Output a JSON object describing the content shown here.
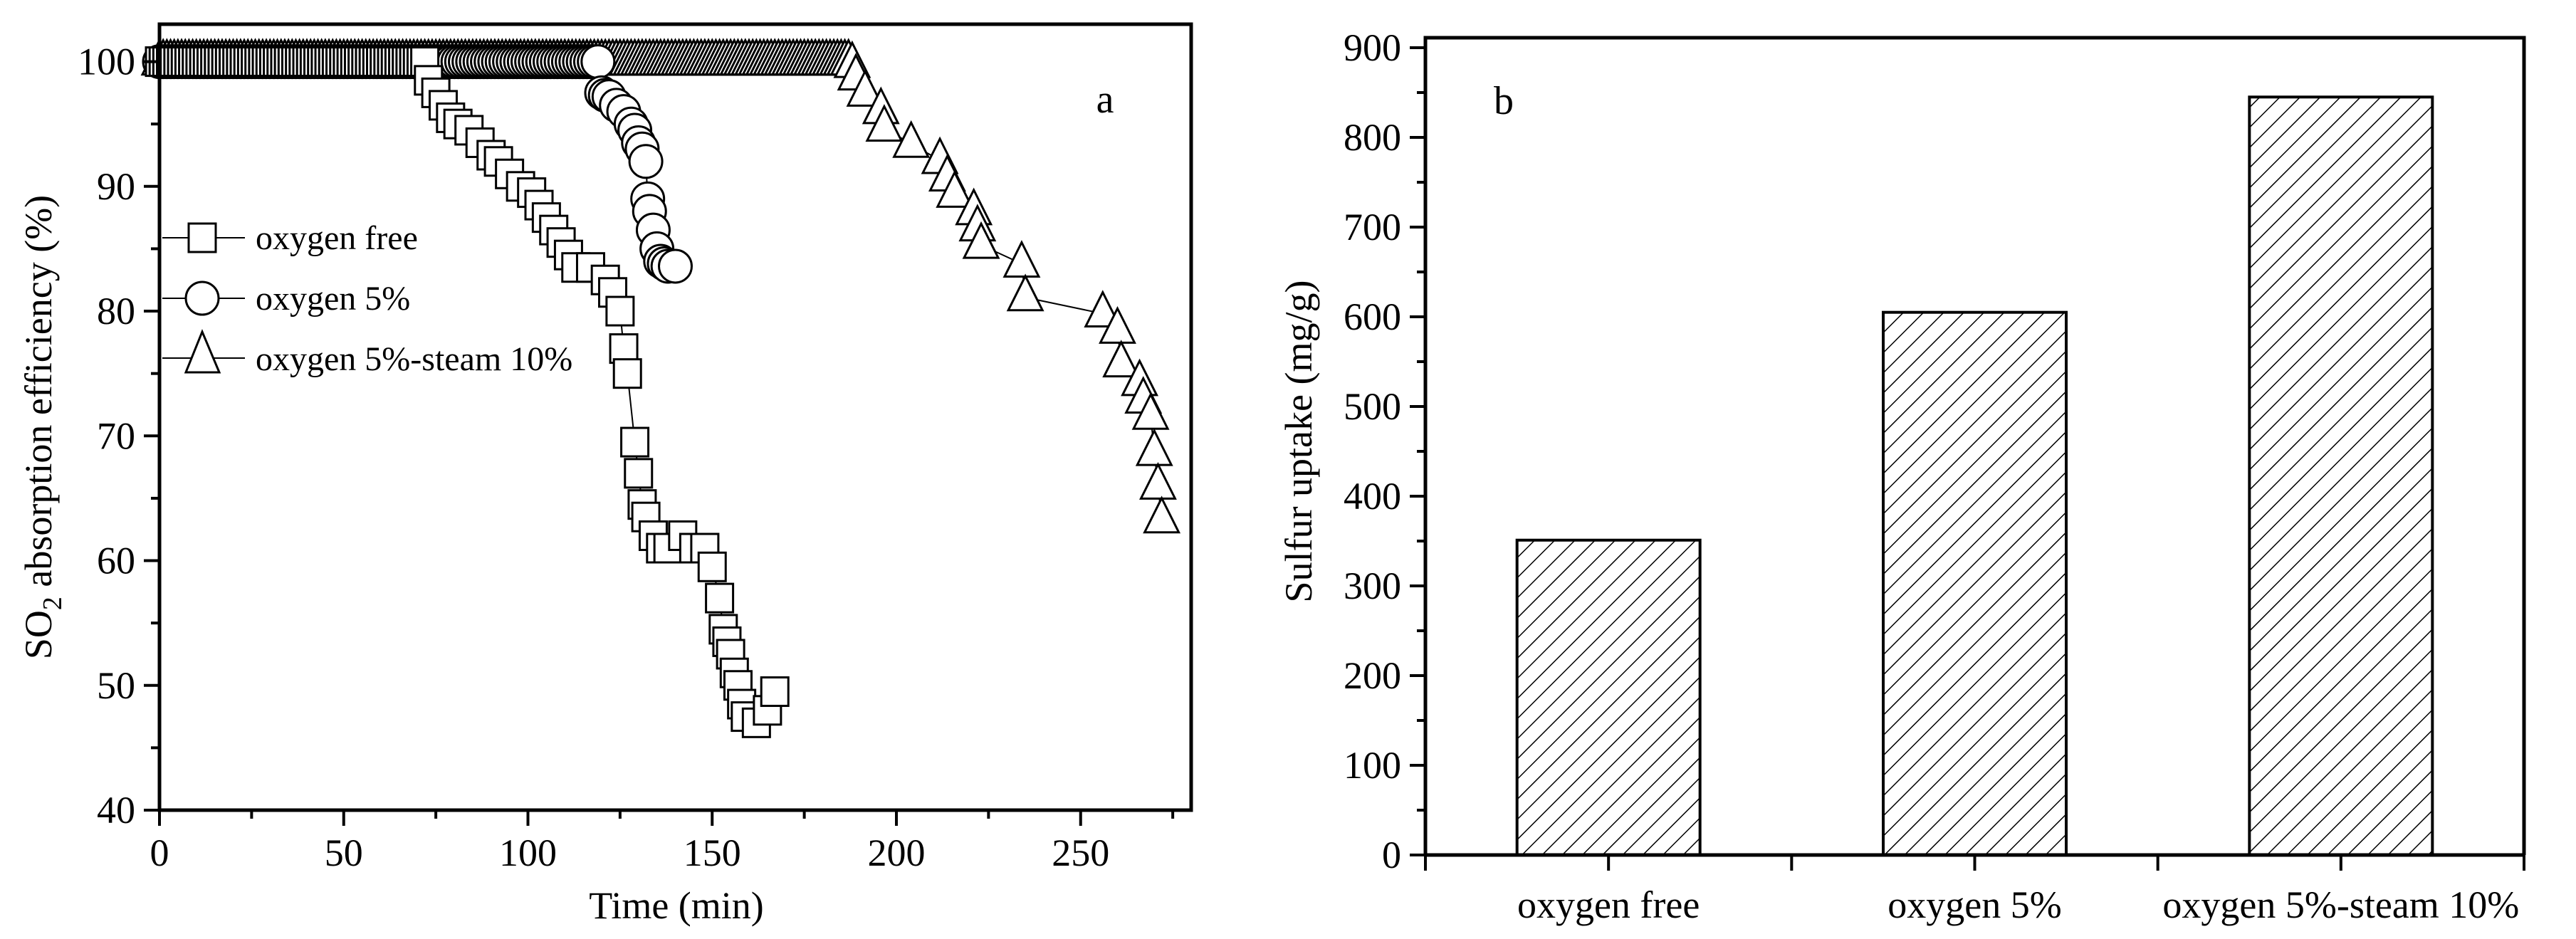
{
  "figure": {
    "panels": [
      "a",
      "b"
    ]
  },
  "panel_a": {
    "letter": "a",
    "xlabel": "Time (min)",
    "ylabel_prefix": "SO",
    "ylabel_sub": "2",
    "ylabel_suffix": " absorption efficiency (%)",
    "xticks": [
      "0",
      "50",
      "100",
      "150",
      "200",
      "250"
    ],
    "yticks": [
      "40",
      "50",
      "60",
      "70",
      "80",
      "90",
      "100"
    ],
    "legend": [
      {
        "label": "oxygen free",
        "marker": "square-icon"
      },
      {
        "label": "oxygen 5%",
        "marker": "circle-icon"
      },
      {
        "label": "oxygen 5%-steam 10%",
        "marker": "triangle-icon"
      }
    ]
  },
  "panel_b": {
    "letter": "b",
    "ylabel": "Sulfur uptake (mg/g)",
    "yticks": [
      "0",
      "100",
      "200",
      "300",
      "400",
      "500",
      "600",
      "700",
      "800",
      "900"
    ],
    "categories": [
      "oxygen free",
      "oxygen 5%",
      "oxygen 5%-steam 10%"
    ]
  },
  "chart_data": [
    {
      "type": "scatter",
      "title": "a",
      "xlabel": "Time (min)",
      "ylabel": "SO2 absorption efficiency (%)",
      "xlim": [
        0,
        280
      ],
      "ylim": [
        40,
        103
      ],
      "xticks": [
        0,
        50,
        100,
        150,
        200,
        250
      ],
      "yticks": [
        40,
        50,
        60,
        70,
        80,
        90,
        100
      ],
      "grid": false,
      "legend_position": "upper left",
      "series": [
        {
          "name": "oxygen free",
          "marker": "square",
          "plateau": {
            "from": 0,
            "to": 72,
            "value": 100,
            "step": 1
          },
          "points": [
            [
              73,
              98.5
            ],
            [
              75,
              97.5
            ],
            [
              77,
              96.5
            ],
            [
              79,
              95.5
            ],
            [
              81,
              95
            ],
            [
              84,
              94.5
            ],
            [
              87,
              93.5
            ],
            [
              90,
              92.5
            ],
            [
              92,
              92
            ],
            [
              95,
              91
            ],
            [
              98,
              90
            ],
            [
              101,
              89.5
            ],
            [
              103,
              88.5
            ],
            [
              105,
              87.5
            ],
            [
              107,
              86.5
            ],
            [
              109,
              85.5
            ],
            [
              111,
              84.5
            ],
            [
              113,
              83.5
            ],
            [
              117,
              83.5
            ],
            [
              121,
              82.5
            ],
            [
              123,
              81.5
            ],
            [
              125,
              80
            ],
            [
              126,
              77
            ],
            [
              127,
              75
            ],
            [
              129,
              69.5
            ],
            [
              130,
              67
            ],
            [
              131,
              64.5
            ],
            [
              132,
              63.5
            ],
            [
              134,
              62
            ],
            [
              136,
              61
            ],
            [
              138,
              61
            ],
            [
              142,
              62
            ],
            [
              145,
              61
            ],
            [
              148,
              61
            ],
            [
              150,
              59.5
            ],
            [
              152,
              57
            ],
            [
              153,
              54.5
            ],
            [
              154,
              53.5
            ],
            [
              155,
              52.5
            ],
            [
              156,
              51
            ],
            [
              157,
              50
            ],
            [
              158,
              48.5
            ],
            [
              159,
              47.5
            ],
            [
              162,
              47
            ],
            [
              165,
              48
            ],
            [
              167,
              49.5
            ]
          ]
        },
        {
          "name": "oxygen 5%",
          "marker": "circle",
          "plateau": {
            "from": 0,
            "to": 119,
            "value": 100,
            "step": 1
          },
          "points": [
            [
              120,
              97.5
            ],
            [
              121,
              97.3
            ],
            [
              122,
              97.2
            ],
            [
              124,
              96.5
            ],
            [
              126,
              96
            ],
            [
              128,
              95
            ],
            [
              129,
              94.5
            ],
            [
              130,
              93.5
            ],
            [
              131,
              93
            ],
            [
              132,
              92
            ],
            [
              132.5,
              89
            ],
            [
              133,
              88
            ],
            [
              134,
              86.5
            ],
            [
              135,
              85
            ],
            [
              136,
              84
            ],
            [
              137,
              83.8
            ],
            [
              138,
              83.6
            ],
            [
              140,
              83.6
            ]
          ]
        },
        {
          "name": "oxygen 5%-steam 10%",
          "marker": "triangle",
          "plateau": {
            "from": 0,
            "to": 187,
            "value": 100,
            "step": 1
          },
          "points": [
            [
              188,
              99.8
            ],
            [
              189,
              98.8
            ],
            [
              191.5,
              97.5
            ],
            [
              195.8,
              96.1
            ],
            [
              196.7,
              94.7
            ],
            [
              204,
              93.4
            ],
            [
              211.8,
              92.1
            ],
            [
              213.8,
              90.7
            ],
            [
              215.8,
              89.4
            ],
            [
              221,
              88
            ],
            [
              222,
              86.7
            ],
            [
              223,
              85.3
            ],
            [
              234,
              83.8
            ],
            [
              235,
              81.1
            ],
            [
              256,
              79.8
            ],
            [
              260,
              78.5
            ],
            [
              261,
              75.8
            ],
            [
              266,
              74.3
            ],
            [
              267,
              72.9
            ],
            [
              269,
              71.6
            ],
            [
              270,
              68.7
            ],
            [
              271,
              66
            ],
            [
              272,
              63.3
            ]
          ]
        }
      ]
    },
    {
      "type": "bar",
      "title": "b",
      "xlabel": "",
      "ylabel": "Sulfur uptake (mg/g)",
      "categories": [
        "oxygen free",
        "oxygen 5%",
        "oxygen 5%-steam 10%"
      ],
      "values": [
        351,
        605,
        845
      ],
      "ylim": [
        0,
        900
      ],
      "yticks": [
        0,
        100,
        200,
        300,
        400,
        500,
        600,
        700,
        800,
        900
      ],
      "bar_fill": "hatched",
      "grid": false
    }
  ]
}
